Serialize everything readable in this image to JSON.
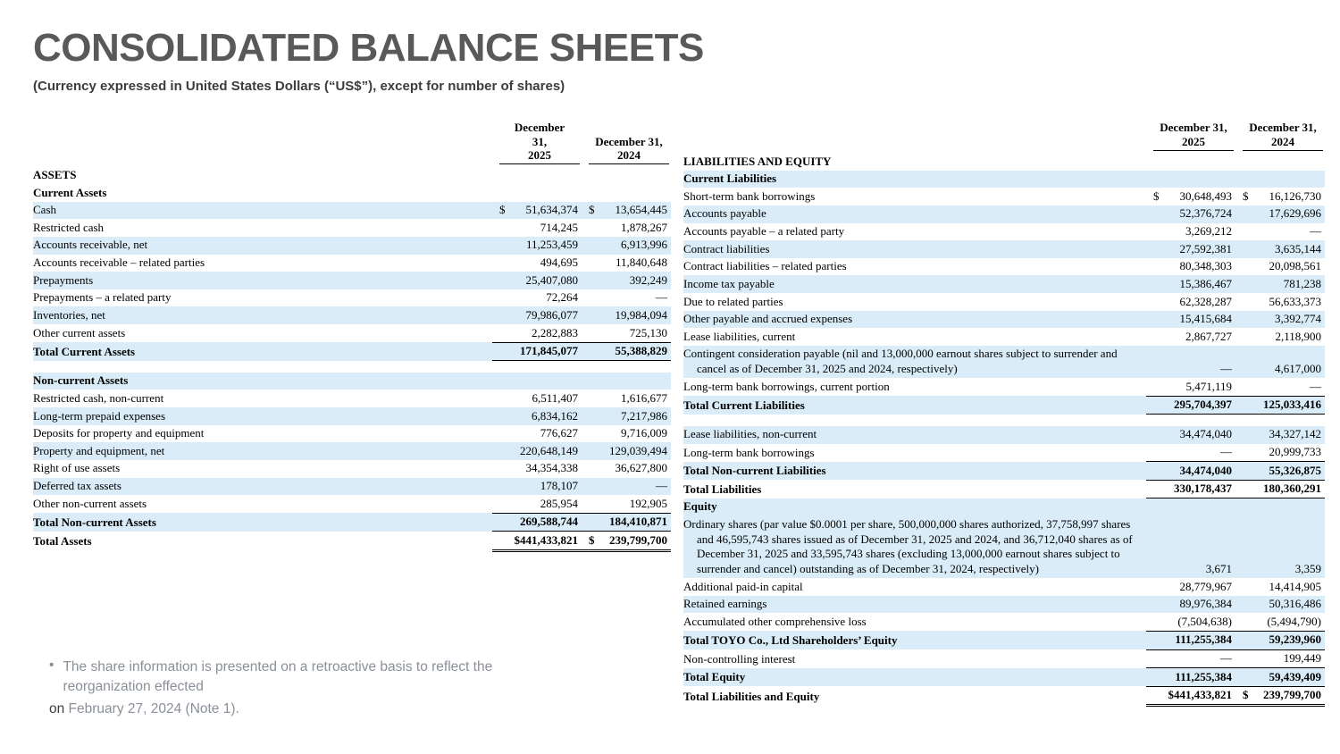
{
  "header": {
    "title": "CONSOLIDATED BALANCE SHEETS",
    "subtitle": "(Currency expressed in United States Dollars (“US$”), except for number of shares)"
  },
  "colors": {
    "stripe": "#d9ecf8"
  },
  "assets": {
    "col1": "December\n31,\n2025",
    "col2": "December 31,\n2024",
    "rows": [
      {
        "label": "ASSETS",
        "b": 1
      },
      {
        "label": "Current Assets",
        "b": 1
      },
      {
        "label": "Cash",
        "v1": "$ 51,634,374",
        "v2": "$ 13,654,445",
        "s": 1
      },
      {
        "label": "Restricted cash",
        "v1": "714,245",
        "v2": "1,878,267"
      },
      {
        "label": "Accounts receivable, net",
        "v1": "11,253,459",
        "v2": "6,913,996",
        "s": 1
      },
      {
        "label": "Accounts receivable – related parties",
        "v1": "494,695",
        "v2": "11,840,648"
      },
      {
        "label": "Prepayments",
        "v1": "25,407,080",
        "v2": "392,249",
        "s": 1
      },
      {
        "label": "Prepayments – a related party",
        "v1": "72,264",
        "v2": "—"
      },
      {
        "label": "Inventories, net",
        "v1": "79,986,077",
        "v2": "19,984,094",
        "s": 1
      },
      {
        "label": "Other current assets",
        "v1": "2,282,883",
        "v2": "725,130",
        "u": "s"
      },
      {
        "label": "Total Current Assets",
        "b": 1,
        "v1": "171,845,077",
        "v2": "55,388,829",
        "u": "s",
        "s": 1
      },
      {
        "blank": true
      },
      {
        "label": "Non-current Assets",
        "b": 1,
        "s": 1
      },
      {
        "label": "Restricted cash, non-current",
        "v1": "6,511,407",
        "v2": "1,616,677"
      },
      {
        "label": "Long-term prepaid expenses",
        "v1": "6,834,162",
        "v2": "7,217,986",
        "s": 1
      },
      {
        "label": "Deposits for property and equipment",
        "v1": "776,627",
        "v2": "9,716,009"
      },
      {
        "label": "Property and equipment, net",
        "v1": "220,648,149",
        "v2": "129,039,494",
        "s": 1
      },
      {
        "label": "Right of use assets",
        "v1": "34,354,338",
        "v2": "36,627,800"
      },
      {
        "label": "Deferred tax assets",
        "v1": "178,107",
        "v2": "—",
        "s": 1
      },
      {
        "label": "Other non-current assets",
        "v1": "285,954",
        "v2": "192,905",
        "u": "s"
      },
      {
        "label": "Total Non-current Assets",
        "b": 1,
        "v1": "269,588,744",
        "v2": "184,410,871",
        "u": "s",
        "s": 1
      },
      {
        "label": "Total Assets",
        "b": 1,
        "v1": "$441,433,821",
        "v2": "$ 239,799,700",
        "u": "d"
      }
    ]
  },
  "liabilities": {
    "col1": "December 31,\n2025",
    "col2": "December 31,\n2024",
    "rows": [
      {
        "label": "LIABILITIES AND EQUITY",
        "b": 1
      },
      {
        "label": "Current Liabilities",
        "b": 1,
        "s": 1
      },
      {
        "label": "Short-term bank borrowings",
        "v1": "$ 30,648,493",
        "v2": "$ 16,126,730"
      },
      {
        "label": "Accounts payable",
        "v1": "52,376,724",
        "v2": "17,629,696",
        "s": 1
      },
      {
        "label": "Accounts payable – a related party",
        "v1": "3,269,212",
        "v2": "—"
      },
      {
        "label": "Contract liabilities",
        "v1": "27,592,381",
        "v2": "3,635,144",
        "s": 1
      },
      {
        "label": "Contract liabilities – related parties",
        "v1": "80,348,303",
        "v2": "20,098,561"
      },
      {
        "label": "Income tax payable",
        "v1": "15,386,467",
        "v2": "781,238",
        "s": 1
      },
      {
        "label": "Due to related parties",
        "v1": "62,328,287",
        "v2": "56,633,373"
      },
      {
        "label": "Other payable and accrued expenses",
        "v1": "15,415,684",
        "v2": "3,392,774",
        "s": 1
      },
      {
        "label": "Lease liabilities, current",
        "v1": "2,867,727",
        "v2": "2,118,900"
      },
      {
        "label": "Contingent consideration payable (nil and 13,000,000 earnout shares subject to surrender and cancel as of December 31, 2025 and 2024, respectively)",
        "v1": "—",
        "v2": "4,617,000",
        "s": 1
      },
      {
        "label": "Long-term bank borrowings, current portion",
        "v1": "5,471,119",
        "v2": "—",
        "u": "s"
      },
      {
        "label": "Total Current Liabilities",
        "b": 1,
        "v1": "295,704,397",
        "v2": "125,033,416",
        "u": "s",
        "s": 1
      },
      {
        "blank": true
      },
      {
        "label": "Lease liabilities, non-current",
        "v1": "34,474,040",
        "v2": "34,327,142",
        "s": 1
      },
      {
        "label": "Long-term bank borrowings",
        "v1": "—",
        "v2": "20,999,733",
        "u": "s"
      },
      {
        "label": "Total Non-current Liabilities",
        "b": 1,
        "v1": "34,474,040",
        "v2": "55,326,875",
        "u": "s",
        "s": 1
      },
      {
        "label": "Total Liabilities",
        "b": 1,
        "v1": "330,178,437",
        "v2": "180,360,291",
        "u": "s"
      },
      {
        "label": "Equity",
        "b": 1,
        "s": 1
      },
      {
        "label": "Ordinary shares (par value $0.0001 per share, 500,000,000 shares authorized, 37,758,997 shares and 46,595,743 shares issued as of December 31, 2025 and 2024, and 36,712,040 shares as of December 31, 2025 and 33,595,743 shares (excluding 13,000,000 earnout shares subject to surrender and cancel) outstanding as of December 31, 2024, respectively)",
        "v1": "3,671",
        "v2": "3,359",
        "s": 1
      },
      {
        "label": "Additional paid-in capital",
        "v1": "28,779,967",
        "v2": "14,414,905"
      },
      {
        "label": "Retained earnings",
        "v1": "89,976,384",
        "v2": "50,316,486",
        "s": 1
      },
      {
        "label": "Accumulated other comprehensive loss",
        "v1": "(7,504,638)",
        "v2": "(5,494,790)",
        "u": "s"
      },
      {
        "label": "Total TOYO Co., Ltd Shareholders’ Equity",
        "b": 1,
        "v1": "111,255,384",
        "v2": "59,239,960",
        "u": "s",
        "s": 1
      },
      {
        "label": "Non-controlling interest",
        "v1": "—",
        "v2": "199,449",
        "u": "s"
      },
      {
        "label": "Total Equity",
        "b": 1,
        "v1": "111,255,384",
        "v2": "59,439,409",
        "u": "s",
        "s": 1
      },
      {
        "label": "Total Liabilities and Equity",
        "b": 1,
        "v1": "$441,433,821",
        "v2": "$ 239,799,700",
        "u": "d"
      }
    ]
  },
  "footnote": {
    "bullet": "•",
    "text": "The share information is presented on a retroactive basis to reflect the reorganization effected",
    "suffix_dark": "on",
    "suffix_rest": " February 27, 2024 (Note 1)."
  }
}
